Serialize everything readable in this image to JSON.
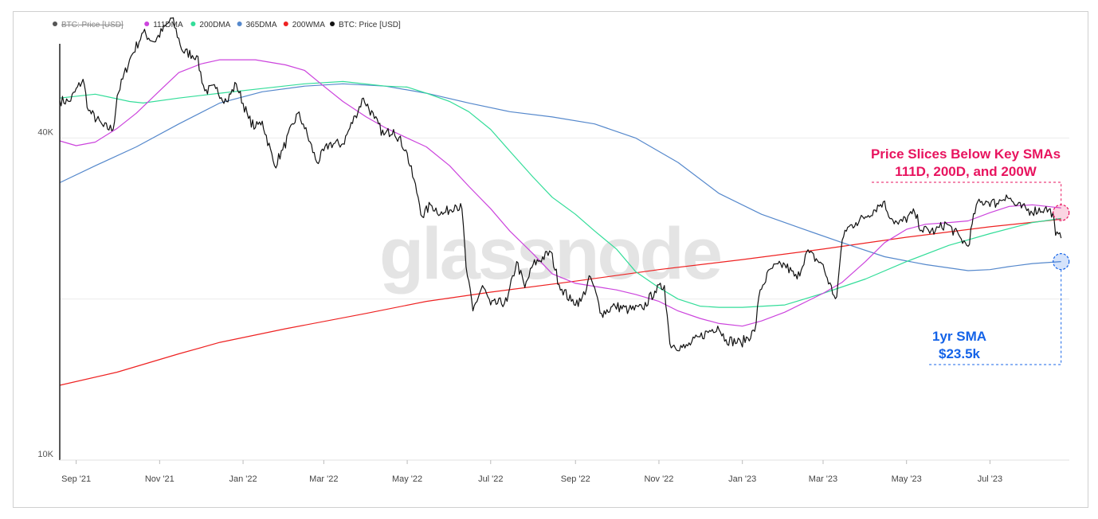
{
  "chart_data": {
    "type": "line",
    "watermark": "glassnode",
    "yscale": "log",
    "ylim": [
      10000,
      60000
    ],
    "ytick_labels": [
      {
        "value": 40000,
        "label": "40K"
      },
      {
        "value": 10000,
        "label": "10K"
      }
    ],
    "xlim": [
      "2021-08-20",
      "2023-08-28"
    ],
    "xtick_labels": [
      {
        "date": "2021-09-01",
        "label": "Sep '21"
      },
      {
        "date": "2021-11-01",
        "label": "Nov '21"
      },
      {
        "date": "2022-01-01",
        "label": "Jan '22"
      },
      {
        "date": "2022-03-01",
        "label": "Mar '22"
      },
      {
        "date": "2022-05-01",
        "label": "May '22"
      },
      {
        "date": "2022-07-01",
        "label": "Jul '22"
      },
      {
        "date": "2022-09-01",
        "label": "Sep '22"
      },
      {
        "date": "2022-11-01",
        "label": "Nov '22"
      },
      {
        "date": "2023-01-01",
        "label": "Jan '23"
      },
      {
        "date": "2023-03-01",
        "label": "Mar '23"
      },
      {
        "date": "2023-05-01",
        "label": "May '23"
      },
      {
        "date": "2023-07-01",
        "label": "Jul '23"
      }
    ],
    "legend": [
      {
        "name": "BTC: Price [USD]",
        "color": "#555555",
        "struck": true
      },
      {
        "name": "111DMA",
        "color": "#cc44dd",
        "struck": false
      },
      {
        "name": "200DMA",
        "color": "#33dd99",
        "struck": false
      },
      {
        "name": "365DMA",
        "color": "#5588cc",
        "struck": false
      },
      {
        "name": "200WMA",
        "color": "#ee2222",
        "struck": false
      },
      {
        "name": "BTC: Price [USD]",
        "color": "#111111",
        "struck": false
      }
    ],
    "series": [
      {
        "name": "BTC: Price [USD]",
        "color": "#111111",
        "width": 1.2,
        "points": [
          [
            "2021-08-20",
            47000
          ],
          [
            "2021-08-27",
            46800
          ],
          [
            "2021-09-06",
            51500
          ],
          [
            "2021-09-10",
            45000
          ],
          [
            "2021-09-21",
            42000
          ],
          [
            "2021-09-28",
            41500
          ],
          [
            "2021-10-01",
            48000
          ],
          [
            "2021-10-10",
            56000
          ],
          [
            "2021-10-20",
            63000
          ],
          [
            "2021-10-28",
            60500
          ],
          [
            "2021-11-10",
            67000
          ],
          [
            "2021-11-18",
            58000
          ],
          [
            "2021-11-28",
            57000
          ],
          [
            "2021-12-04",
            49000
          ],
          [
            "2021-12-12",
            49500
          ],
          [
            "2021-12-20",
            46800
          ],
          [
            "2021-12-27",
            50500
          ],
          [
            "2022-01-05",
            43500
          ],
          [
            "2022-01-10",
            41800
          ],
          [
            "2022-01-15",
            43000
          ],
          [
            "2022-01-24",
            35500
          ],
          [
            "2022-01-30",
            38000
          ],
          [
            "2022-02-10",
            44500
          ],
          [
            "2022-02-14",
            42500
          ],
          [
            "2022-02-24",
            36000
          ],
          [
            "2022-03-05",
            39000
          ],
          [
            "2022-03-15",
            39000
          ],
          [
            "2022-03-24",
            44000
          ],
          [
            "2022-03-30",
            47500
          ],
          [
            "2022-04-07",
            43500
          ],
          [
            "2022-04-14",
            40500
          ],
          [
            "2022-04-21",
            41500
          ],
          [
            "2022-04-30",
            38000
          ],
          [
            "2022-05-09",
            31000
          ],
          [
            "2022-05-12",
            28500
          ],
          [
            "2022-05-18",
            30000
          ],
          [
            "2022-05-27",
            28800
          ],
          [
            "2022-06-05",
            30000
          ],
          [
            "2022-06-10",
            29500
          ],
          [
            "2022-06-13",
            23000
          ],
          [
            "2022-06-18",
            19000
          ],
          [
            "2022-06-25",
            21200
          ],
          [
            "2022-07-01",
            19500
          ],
          [
            "2022-07-13",
            19800
          ],
          [
            "2022-07-20",
            23500
          ],
          [
            "2022-07-26",
            21000
          ],
          [
            "2022-08-01",
            23200
          ],
          [
            "2022-08-14",
            24500
          ],
          [
            "2022-08-20",
            21300
          ],
          [
            "2022-08-29",
            19800
          ],
          [
            "2022-09-05",
            19800
          ],
          [
            "2022-09-12",
            22000
          ],
          [
            "2022-09-20",
            18800
          ],
          [
            "2022-09-30",
            19400
          ],
          [
            "2022-10-10",
            19100
          ],
          [
            "2022-10-20",
            19200
          ],
          [
            "2022-10-29",
            20700
          ],
          [
            "2022-11-05",
            21200
          ],
          [
            "2022-11-09",
            16500
          ],
          [
            "2022-11-20",
            16200
          ],
          [
            "2022-12-01",
            17000
          ],
          [
            "2022-12-14",
            17800
          ],
          [
            "2022-12-20",
            16800
          ],
          [
            "2022-12-31",
            16550
          ],
          [
            "2023-01-10",
            17400
          ],
          [
            "2023-01-14",
            20800
          ],
          [
            "2023-01-22",
            22800
          ],
          [
            "2023-02-01",
            23200
          ],
          [
            "2023-02-10",
            21800
          ],
          [
            "2023-02-17",
            24500
          ],
          [
            "2023-02-28",
            23300
          ],
          [
            "2023-03-09",
            20300
          ],
          [
            "2023-03-11",
            20200
          ],
          [
            "2023-03-14",
            24500
          ],
          [
            "2023-03-17",
            26900
          ],
          [
            "2023-03-25",
            27800
          ],
          [
            "2023-04-01",
            28500
          ],
          [
            "2023-04-14",
            30400
          ],
          [
            "2023-04-20",
            28300
          ],
          [
            "2023-04-25",
            27600
          ],
          [
            "2023-05-07",
            29000
          ],
          [
            "2023-05-12",
            26900
          ],
          [
            "2023-05-22",
            26800
          ],
          [
            "2023-05-30",
            27700
          ],
          [
            "2023-06-10",
            25900
          ],
          [
            "2023-06-15",
            25100
          ],
          [
            "2023-06-21",
            30000
          ],
          [
            "2023-06-28",
            30500
          ],
          [
            "2023-07-06",
            30200
          ],
          [
            "2023-07-13",
            31300
          ],
          [
            "2023-07-20",
            29900
          ],
          [
            "2023-07-31",
            29200
          ],
          [
            "2023-08-10",
            29500
          ],
          [
            "2023-08-16",
            29000
          ],
          [
            "2023-08-18",
            26300
          ],
          [
            "2023-08-22",
            26000
          ]
        ]
      },
      {
        "name": "111DMA",
        "color": "#cc44dd",
        "width": 1.2,
        "points": [
          [
            "2021-08-20",
            39500
          ],
          [
            "2021-09-01",
            38700
          ],
          [
            "2021-09-15",
            39300
          ],
          [
            "2021-10-01",
            41700
          ],
          [
            "2021-10-15",
            44500
          ],
          [
            "2021-11-01",
            49000
          ],
          [
            "2021-11-15",
            53000
          ],
          [
            "2021-12-01",
            55000
          ],
          [
            "2021-12-15",
            56000
          ],
          [
            "2022-01-10",
            56000
          ],
          [
            "2022-02-01",
            54800
          ],
          [
            "2022-02-15",
            53500
          ],
          [
            "2022-03-01",
            50000
          ],
          [
            "2022-03-15",
            46800
          ],
          [
            "2022-04-01",
            43800
          ],
          [
            "2022-04-15",
            41800
          ],
          [
            "2022-05-01",
            40000
          ],
          [
            "2022-05-15",
            38500
          ],
          [
            "2022-06-01",
            35500
          ],
          [
            "2022-06-15",
            32500
          ],
          [
            "2022-07-01",
            29500
          ],
          [
            "2022-07-15",
            26800
          ],
          [
            "2022-08-01",
            24300
          ],
          [
            "2022-08-15",
            22300
          ],
          [
            "2022-09-01",
            21400
          ],
          [
            "2022-10-01",
            20800
          ],
          [
            "2022-10-15",
            20400
          ],
          [
            "2022-11-01",
            19800
          ],
          [
            "2022-11-15",
            19000
          ],
          [
            "2022-12-01",
            18400
          ],
          [
            "2022-12-15",
            18000
          ],
          [
            "2023-01-01",
            17800
          ],
          [
            "2023-01-15",
            18200
          ],
          [
            "2023-02-01",
            18900
          ],
          [
            "2023-03-01",
            20500
          ],
          [
            "2023-03-15",
            21500
          ],
          [
            "2023-04-01",
            23500
          ],
          [
            "2023-04-15",
            25500
          ],
          [
            "2023-05-01",
            27000
          ],
          [
            "2023-05-15",
            27600
          ],
          [
            "2023-06-01",
            27800
          ],
          [
            "2023-06-15",
            28000
          ],
          [
            "2023-07-01",
            29000
          ],
          [
            "2023-07-15",
            29800
          ],
          [
            "2023-08-01",
            30000
          ],
          [
            "2023-08-22",
            29600
          ]
        ]
      },
      {
        "name": "200DMA",
        "color": "#33dd99",
        "width": 1.2,
        "points": [
          [
            "2021-08-20",
            47500
          ],
          [
            "2021-09-15",
            48300
          ],
          [
            "2021-10-10",
            46800
          ],
          [
            "2021-10-20",
            46500
          ],
          [
            "2021-11-15",
            47500
          ],
          [
            "2021-12-15",
            48500
          ],
          [
            "2022-01-15",
            49500
          ],
          [
            "2022-02-15",
            50500
          ],
          [
            "2022-03-15",
            51000
          ],
          [
            "2022-04-15",
            50000
          ],
          [
            "2022-05-01",
            49800
          ],
          [
            "2022-05-15",
            48500
          ],
          [
            "2022-06-01",
            46800
          ],
          [
            "2022-06-15",
            44800
          ],
          [
            "2022-07-01",
            41500
          ],
          [
            "2022-07-15",
            37800
          ],
          [
            "2022-08-01",
            33800
          ],
          [
            "2022-08-15",
            31000
          ],
          [
            "2022-09-01",
            28800
          ],
          [
            "2022-09-15",
            26800
          ],
          [
            "2022-10-01",
            24800
          ],
          [
            "2022-10-15",
            22500
          ],
          [
            "2022-11-01",
            21000
          ],
          [
            "2022-11-15",
            20000
          ],
          [
            "2022-12-01",
            19400
          ],
          [
            "2022-12-15",
            19300
          ],
          [
            "2023-01-01",
            19300
          ],
          [
            "2023-02-01",
            19500
          ],
          [
            "2023-03-01",
            20500
          ],
          [
            "2023-04-01",
            21800
          ],
          [
            "2023-05-01",
            23500
          ],
          [
            "2023-06-01",
            25200
          ],
          [
            "2023-07-01",
            26500
          ],
          [
            "2023-08-01",
            27800
          ],
          [
            "2023-08-22",
            28300
          ]
        ]
      },
      {
        "name": "365DMA",
        "color": "#5588cc",
        "width": 1.2,
        "points": [
          [
            "2021-08-20",
            33000
          ],
          [
            "2021-09-15",
            35500
          ],
          [
            "2021-10-15",
            38500
          ],
          [
            "2021-11-15",
            42500
          ],
          [
            "2021-12-15",
            46500
          ],
          [
            "2022-01-15",
            48800
          ],
          [
            "2022-02-15",
            50000
          ],
          [
            "2022-03-15",
            50500
          ],
          [
            "2022-04-15",
            50000
          ],
          [
            "2022-05-15",
            48500
          ],
          [
            "2022-06-15",
            46500
          ],
          [
            "2022-07-15",
            44800
          ],
          [
            "2022-08-15",
            43800
          ],
          [
            "2022-09-15",
            42500
          ],
          [
            "2022-10-15",
            40000
          ],
          [
            "2022-11-15",
            36000
          ],
          [
            "2022-12-15",
            31500
          ],
          [
            "2023-01-15",
            28800
          ],
          [
            "2023-02-15",
            27000
          ],
          [
            "2023-03-15",
            25500
          ],
          [
            "2023-04-15",
            24000
          ],
          [
            "2023-05-15",
            23200
          ],
          [
            "2023-06-15",
            22600
          ],
          [
            "2023-07-01",
            22700
          ],
          [
            "2023-07-15",
            23000
          ],
          [
            "2023-08-01",
            23300
          ],
          [
            "2023-08-22",
            23500
          ]
        ]
      },
      {
        "name": "200WMA",
        "color": "#ee2222",
        "width": 1.2,
        "points": [
          [
            "2021-08-20",
            13800
          ],
          [
            "2021-10-01",
            14600
          ],
          [
            "2021-11-15",
            15800
          ],
          [
            "2021-12-15",
            16600
          ],
          [
            "2022-02-01",
            17600
          ],
          [
            "2022-04-01",
            18800
          ],
          [
            "2022-05-15",
            19800
          ],
          [
            "2022-07-01",
            20600
          ],
          [
            "2022-09-01",
            21600
          ],
          [
            "2022-11-01",
            22700
          ],
          [
            "2023-01-01",
            23700
          ],
          [
            "2023-03-01",
            24800
          ],
          [
            "2023-05-01",
            26100
          ],
          [
            "2023-07-01",
            27300
          ],
          [
            "2023-08-22",
            28200
          ]
        ]
      }
    ],
    "annotations": [
      {
        "lines": [
          "Price Slices Below Key SMAs",
          "111D, 200D, and 200W"
        ],
        "color": "#e8145f",
        "date": "2023-08-22",
        "value": 29000
      },
      {
        "lines": [
          "1yr SMA",
          "$23.5k"
        ],
        "color": "#1463e8",
        "date": "2023-08-22",
        "value": 23500
      }
    ]
  }
}
